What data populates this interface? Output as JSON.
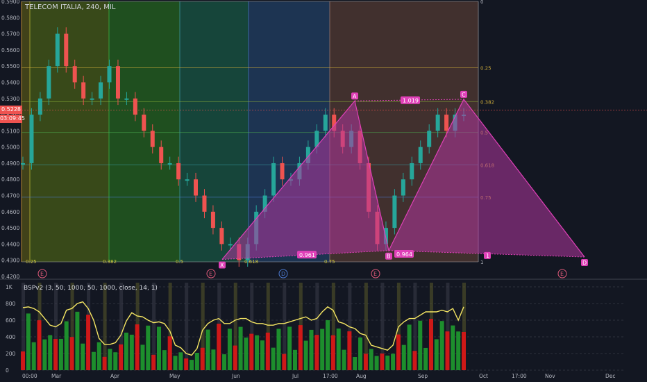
{
  "header": {
    "ticker": "TELECOM ITALIA, 240, MIL"
  },
  "indicator": {
    "title": "BSPv2 (3, 50, 1000, 50, 1000, close, 14, 1)"
  },
  "price_badge": {
    "price": "0.5228",
    "timer": "03:09:45"
  },
  "colors": {
    "background": "#131722",
    "pattern_fill": "#b0379e",
    "pattern_label": "#e040b8",
    "candle_up": "#26a69a",
    "candle_down": "#ef5350",
    "volume_green": "#1f9b2f",
    "volume_red": "#e01616",
    "bsp_line": "#f5e663"
  },
  "chart_data": [
    {
      "type": "candlestick",
      "title": "TELECOM ITALIA, 240, MIL",
      "ylim": [
        0.42,
        0.59
      ],
      "y_ticks": [
        "0.5900",
        "0.5800",
        "0.5700",
        "0.5600",
        "0.5500",
        "0.5400",
        "0.5300",
        "0.5200",
        "0.5100",
        "0.5000",
        "0.4900",
        "0.4800",
        "0.4700",
        "0.4600",
        "0.4500",
        "0.4400",
        "0.4300",
        "0.4200"
      ],
      "x_ticks": [
        "00:00",
        "Mar",
        "Apr",
        "May",
        "Jun",
        "Jul",
        "17:00",
        "Aug",
        "Sep",
        "Oct",
        "17:00",
        "Nov",
        "Dec"
      ],
      "close_series": [
        0.49,
        0.52,
        0.53,
        0.55,
        0.57,
        0.55,
        0.54,
        0.53,
        0.53,
        0.54,
        0.55,
        0.53,
        0.53,
        0.52,
        0.51,
        0.5,
        0.49,
        0.49,
        0.48,
        0.48,
        0.47,
        0.46,
        0.45,
        0.44,
        0.44,
        0.43,
        0.44,
        0.46,
        0.47,
        0.49,
        0.48,
        0.48,
        0.49,
        0.5,
        0.51,
        0.52,
        0.51,
        0.5,
        0.51,
        0.49,
        0.46,
        0.44,
        0.45,
        0.47,
        0.48,
        0.49,
        0.5,
        0.51,
        0.52,
        0.51,
        0.52,
        0.52
      ],
      "harmonic_pattern": {
        "points": [
          {
            "label": "X",
            "price": 0.4305
          },
          {
            "label": "A",
            "price": 0.5285
          },
          {
            "label": "B",
            "price": 0.436
          },
          {
            "label": "C",
            "price": 0.5295
          },
          {
            "label": "D",
            "price": 0.432
          }
        ],
        "ratios": [
          "0.961",
          "1.019",
          "0.964"
        ],
        "end_marker": "1"
      },
      "fib_levels": [
        {
          "ratio": "0",
          "price": 0.59
        },
        {
          "ratio": "0.25",
          "price": 0.549
        },
        {
          "ratio": "0.382",
          "price": 0.528
        },
        {
          "ratio": "0.5",
          "price": 0.509
        },
        {
          "ratio": "0.618",
          "price": 0.489
        },
        {
          "ratio": "0.75",
          "price": 0.469
        },
        {
          "ratio": "1",
          "price": 0.429
        }
      ],
      "fib_bottom_labels": [
        "0.25",
        "0.382",
        "0.5",
        "0.618",
        "0.75"
      ],
      "event_markers": [
        "E",
        "E",
        "D",
        "E",
        "E"
      ]
    },
    {
      "type": "area",
      "title": "BSPv2 (3, 50, 1000, 50, 1000, close, 14, 1)",
      "ylim": [
        0,
        1000
      ],
      "y_ticks": [
        "1K",
        "800",
        "600",
        "400",
        "200",
        "0"
      ],
      "line_series": [
        750,
        760,
        740,
        700,
        620,
        540,
        520,
        560,
        720,
        740,
        800,
        820,
        740,
        600,
        380,
        310,
        310,
        330,
        420,
        590,
        690,
        650,
        640,
        600,
        570,
        580,
        560,
        470,
        300,
        270,
        200,
        180,
        260,
        480,
        560,
        600,
        620,
        560,
        560,
        600,
        620,
        620,
        580,
        560,
        560,
        540,
        540,
        560,
        560,
        580,
        600,
        620,
        640,
        600,
        620,
        700,
        760,
        720,
        580,
        560,
        520,
        500,
        440,
        420,
        300,
        280,
        260,
        240,
        300,
        520,
        580,
        620,
        620,
        660,
        700,
        700,
        700,
        720,
        700,
        740,
        600,
        760
      ]
    }
  ]
}
